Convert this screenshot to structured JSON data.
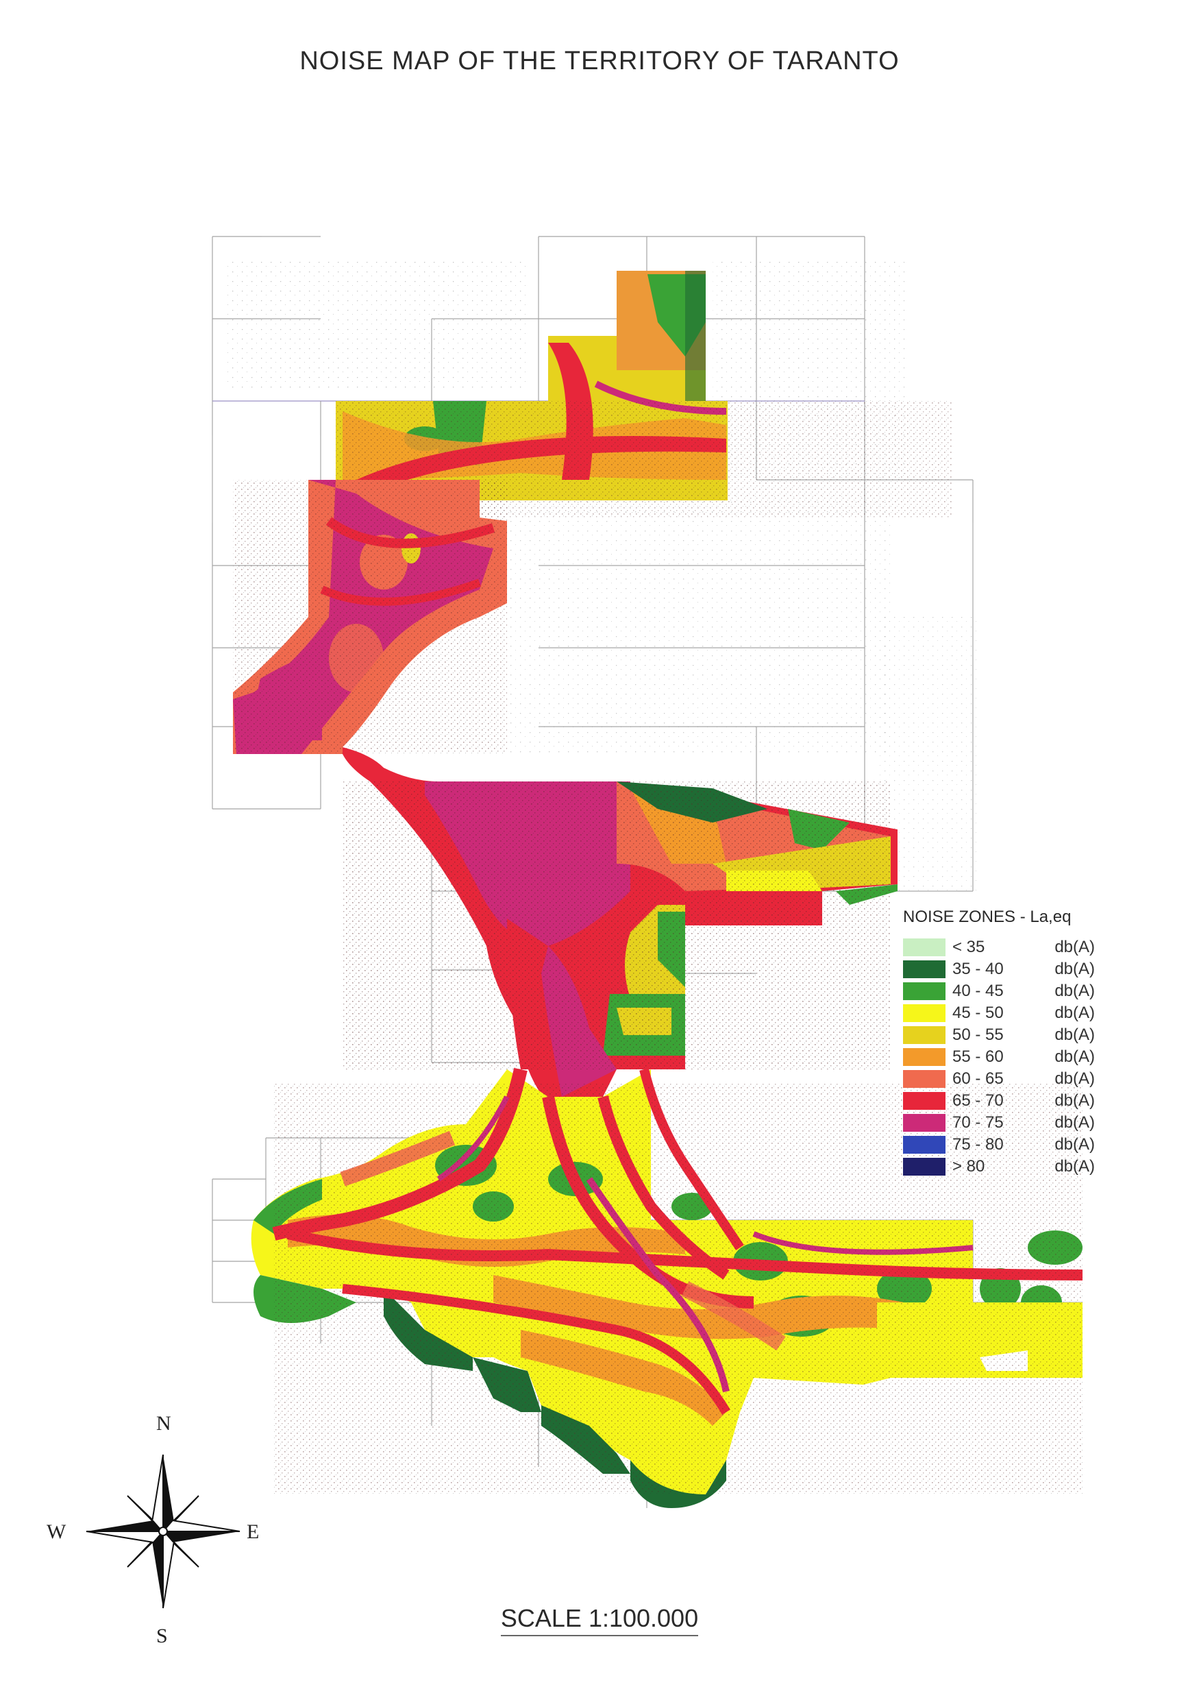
{
  "title": "NOISE MAP OF THE TERRITORY OF TARANTO",
  "legend": {
    "title": "NOISE ZONES - La,eq",
    "items": [
      {
        "range": "< 35",
        "unit": "db(A)",
        "color": "#c9efc2"
      },
      {
        "range": "35 - 40",
        "unit": "db(A)",
        "color": "#1f6b34"
      },
      {
        "range": "40 - 45",
        "unit": "db(A)",
        "color": "#3aa336"
      },
      {
        "range": "45 - 50",
        "unit": "db(A)",
        "color": "#f6f61a"
      },
      {
        "range": "50 - 55",
        "unit": "db(A)",
        "color": "#e6d21e"
      },
      {
        "range": "55 - 60",
        "unit": "db(A)",
        "color": "#f39a2a"
      },
      {
        "range": "60 - 65",
        "unit": "db(A)",
        "color": "#f06a4e"
      },
      {
        "range": "65 - 70",
        "unit": "db(A)",
        "color": "#e7263a"
      },
      {
        "range": "70 - 75",
        "unit": "db(A)",
        "color": "#cc2a78"
      },
      {
        "range": "75 - 80",
        "unit": "db(A)",
        "color": "#3047b8"
      },
      {
        "range": "> 80",
        "unit": "db(A)",
        "color": "#1f1f6a"
      }
    ]
  },
  "compass": {
    "north": "N",
    "south": "S",
    "east": "E",
    "west": "W"
  },
  "scale": "SCALE 1:100.000"
}
